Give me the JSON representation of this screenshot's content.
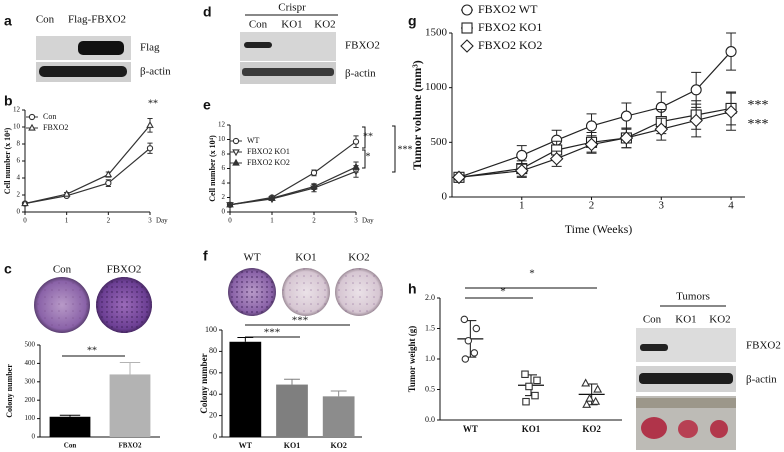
{
  "figure": {
    "panel_labels": [
      "a",
      "b",
      "c",
      "d",
      "e",
      "f",
      "g",
      "h"
    ],
    "blot_a": {
      "lanes": [
        "Con",
        "Flag-FBXO2"
      ],
      "rows": [
        "Flag",
        "β-actin"
      ]
    },
    "blot_d": {
      "header": "Crispr",
      "lanes": [
        "Con",
        "KO1",
        "KO2"
      ],
      "rows": [
        "FBXO2",
        "β-actin"
      ]
    },
    "plates_c": [
      "Con",
      "FBXO2"
    ],
    "plates_f": [
      "WT",
      "KO1",
      "KO2"
    ],
    "blot_h": {
      "header": "Tumors",
      "lanes": [
        "Con",
        "KO1",
        "KO2"
      ],
      "rows": [
        "FBXO2",
        "β-actin"
      ]
    }
  },
  "chart_data": [
    {
      "type": "line",
      "y_label": "Cell number (x 10⁴)",
      "x_unit": "Day",
      "x": [
        0,
        1,
        2,
        3
      ],
      "xlim": [
        0,
        3
      ],
      "xticks": [
        0,
        1,
        2,
        3
      ],
      "ylim": [
        0,
        12
      ],
      "yticks": [
        0,
        2,
        4,
        6,
        8,
        10,
        12
      ],
      "series": [
        {
          "name": "Con",
          "marker": "circle",
          "filled": false,
          "color": "#333333",
          "values": [
            1,
            1.9,
            3.4,
            7.5
          ],
          "errors": [
            0.1,
            0.2,
            0.4,
            0.6
          ]
        },
        {
          "name": "FBXO2",
          "marker": "triangle",
          "filled": false,
          "color": "#333333",
          "values": [
            1,
            2.1,
            4.4,
            10.2
          ],
          "errors": [
            0.1,
            0.2,
            0.3,
            0.8
          ]
        }
      ],
      "annotations": [
        "**"
      ]
    },
    {
      "type": "bar",
      "y_label": "Colony number",
      "categories": [
        "Con",
        "FBXO2"
      ],
      "values": [
        110,
        340
      ],
      "errors": [
        8,
        65
      ],
      "colors": [
        "#000000",
        "#b3b3b3"
      ],
      "ylim": [
        0,
        500
      ],
      "yticks": [
        0,
        100,
        200,
        300,
        400,
        500
      ],
      "annotations": [
        "**"
      ]
    },
    {
      "type": "line",
      "y_label": "Cell number (x 10⁴)",
      "x_unit": "Day",
      "x": [
        0,
        1,
        2,
        3
      ],
      "xlim": [
        0,
        3
      ],
      "xticks": [
        0,
        1,
        2,
        3
      ],
      "ylim": [
        0,
        12
      ],
      "yticks": [
        0,
        2,
        4,
        6,
        8,
        10,
        12
      ],
      "series": [
        {
          "name": "WT",
          "marker": "circle",
          "filled": false,
          "color": "#333333",
          "values": [
            1,
            2,
            5.4,
            9.7
          ],
          "errors": [
            0.1,
            0.2,
            0.4,
            0.8
          ]
        },
        {
          "name": "FBXO2 KO1",
          "marker": "triangle-down",
          "filled": false,
          "color": "#333333",
          "values": [
            1,
            1.8,
            3.3,
            5.6
          ],
          "errors": [
            0.1,
            0.2,
            0.5,
            0.8
          ]
        },
        {
          "name": "FBXO2 KO2",
          "marker": "triangle",
          "filled": true,
          "color": "#333333",
          "values": [
            1,
            1.9,
            3.5,
            6.2
          ],
          "errors": [
            0.1,
            0.2,
            0.4,
            0.7
          ]
        }
      ],
      "annotations": [
        "**",
        "*",
        "***"
      ]
    },
    {
      "type": "bar",
      "y_label": "Colony number",
      "categories": [
        "WT",
        "KO1",
        "KO2"
      ],
      "values": [
        89,
        49,
        38
      ],
      "errors": [
        4,
        5,
        5
      ],
      "colors": [
        "#000000",
        "#7f7f7f",
        "#8c8c8c"
      ],
      "ylim": [
        0,
        100
      ],
      "yticks": [
        0,
        20,
        40,
        60,
        80,
        100
      ],
      "annotations": [
        "***",
        "***"
      ]
    },
    {
      "type": "line",
      "y_label": "Tumor volume (mm³)",
      "x_label": "Time (Weeks)",
      "x": [
        0.1,
        1,
        1.5,
        2,
        2.5,
        3,
        3.5,
        4
      ],
      "xlim": [
        0,
        4.2
      ],
      "xticks": [
        1,
        2,
        3,
        4
      ],
      "ylim": [
        0,
        1500
      ],
      "yticks": [
        0,
        500,
        1000,
        1500
      ],
      "series": [
        {
          "name": "FBXO2 WT",
          "marker": "circle",
          "filled": false,
          "color": "#222222",
          "values": [
            180,
            380,
            520,
            650,
            740,
            820,
            980,
            1330
          ],
          "errors": [
            20,
            90,
            90,
            110,
            120,
            140,
            160,
            170
          ]
        },
        {
          "name": "FBXO2 KO1",
          "marker": "square",
          "filled": false,
          "color": "#222222",
          "values": [
            180,
            260,
            430,
            500,
            540,
            690,
            750,
            810
          ],
          "errors": [
            20,
            70,
            80,
            90,
            90,
            110,
            130,
            150
          ]
        },
        {
          "name": "FBXO2 KO2",
          "marker": "diamond",
          "filled": false,
          "color": "#222222",
          "values": [
            180,
            240,
            350,
            480,
            540,
            620,
            700,
            780
          ],
          "errors": [
            20,
            60,
            70,
            80,
            90,
            100,
            150,
            170
          ]
        }
      ],
      "annotations": [
        "***",
        "***"
      ]
    },
    {
      "type": "dot",
      "y_label": "Tumor weight (g)",
      "categories": [
        "WT",
        "KO1",
        "KO2"
      ],
      "points": [
        [
          1.65,
          1.5,
          1.3,
          1.1,
          1.0
        ],
        [
          0.75,
          0.65,
          0.55,
          0.4,
          0.3
        ],
        [
          0.6,
          0.5,
          0.35,
          0.3,
          0.25
        ]
      ],
      "markers": [
        "circle",
        "square",
        "triangle"
      ],
      "means": [
        1.33,
        0.57,
        0.42
      ],
      "errors": [
        0.3,
        0.17,
        0.17
      ],
      "ylim": [
        0,
        2
      ],
      "yticks": [
        {
          "value": 0,
          "label": "0.0"
        },
        0.5,
        {
          "value": 1,
          "label": "1.0"
        },
        1.5,
        {
          "value": 2,
          "label": "2.0"
        }
      ],
      "annotations": [
        "*",
        "*"
      ]
    }
  ]
}
